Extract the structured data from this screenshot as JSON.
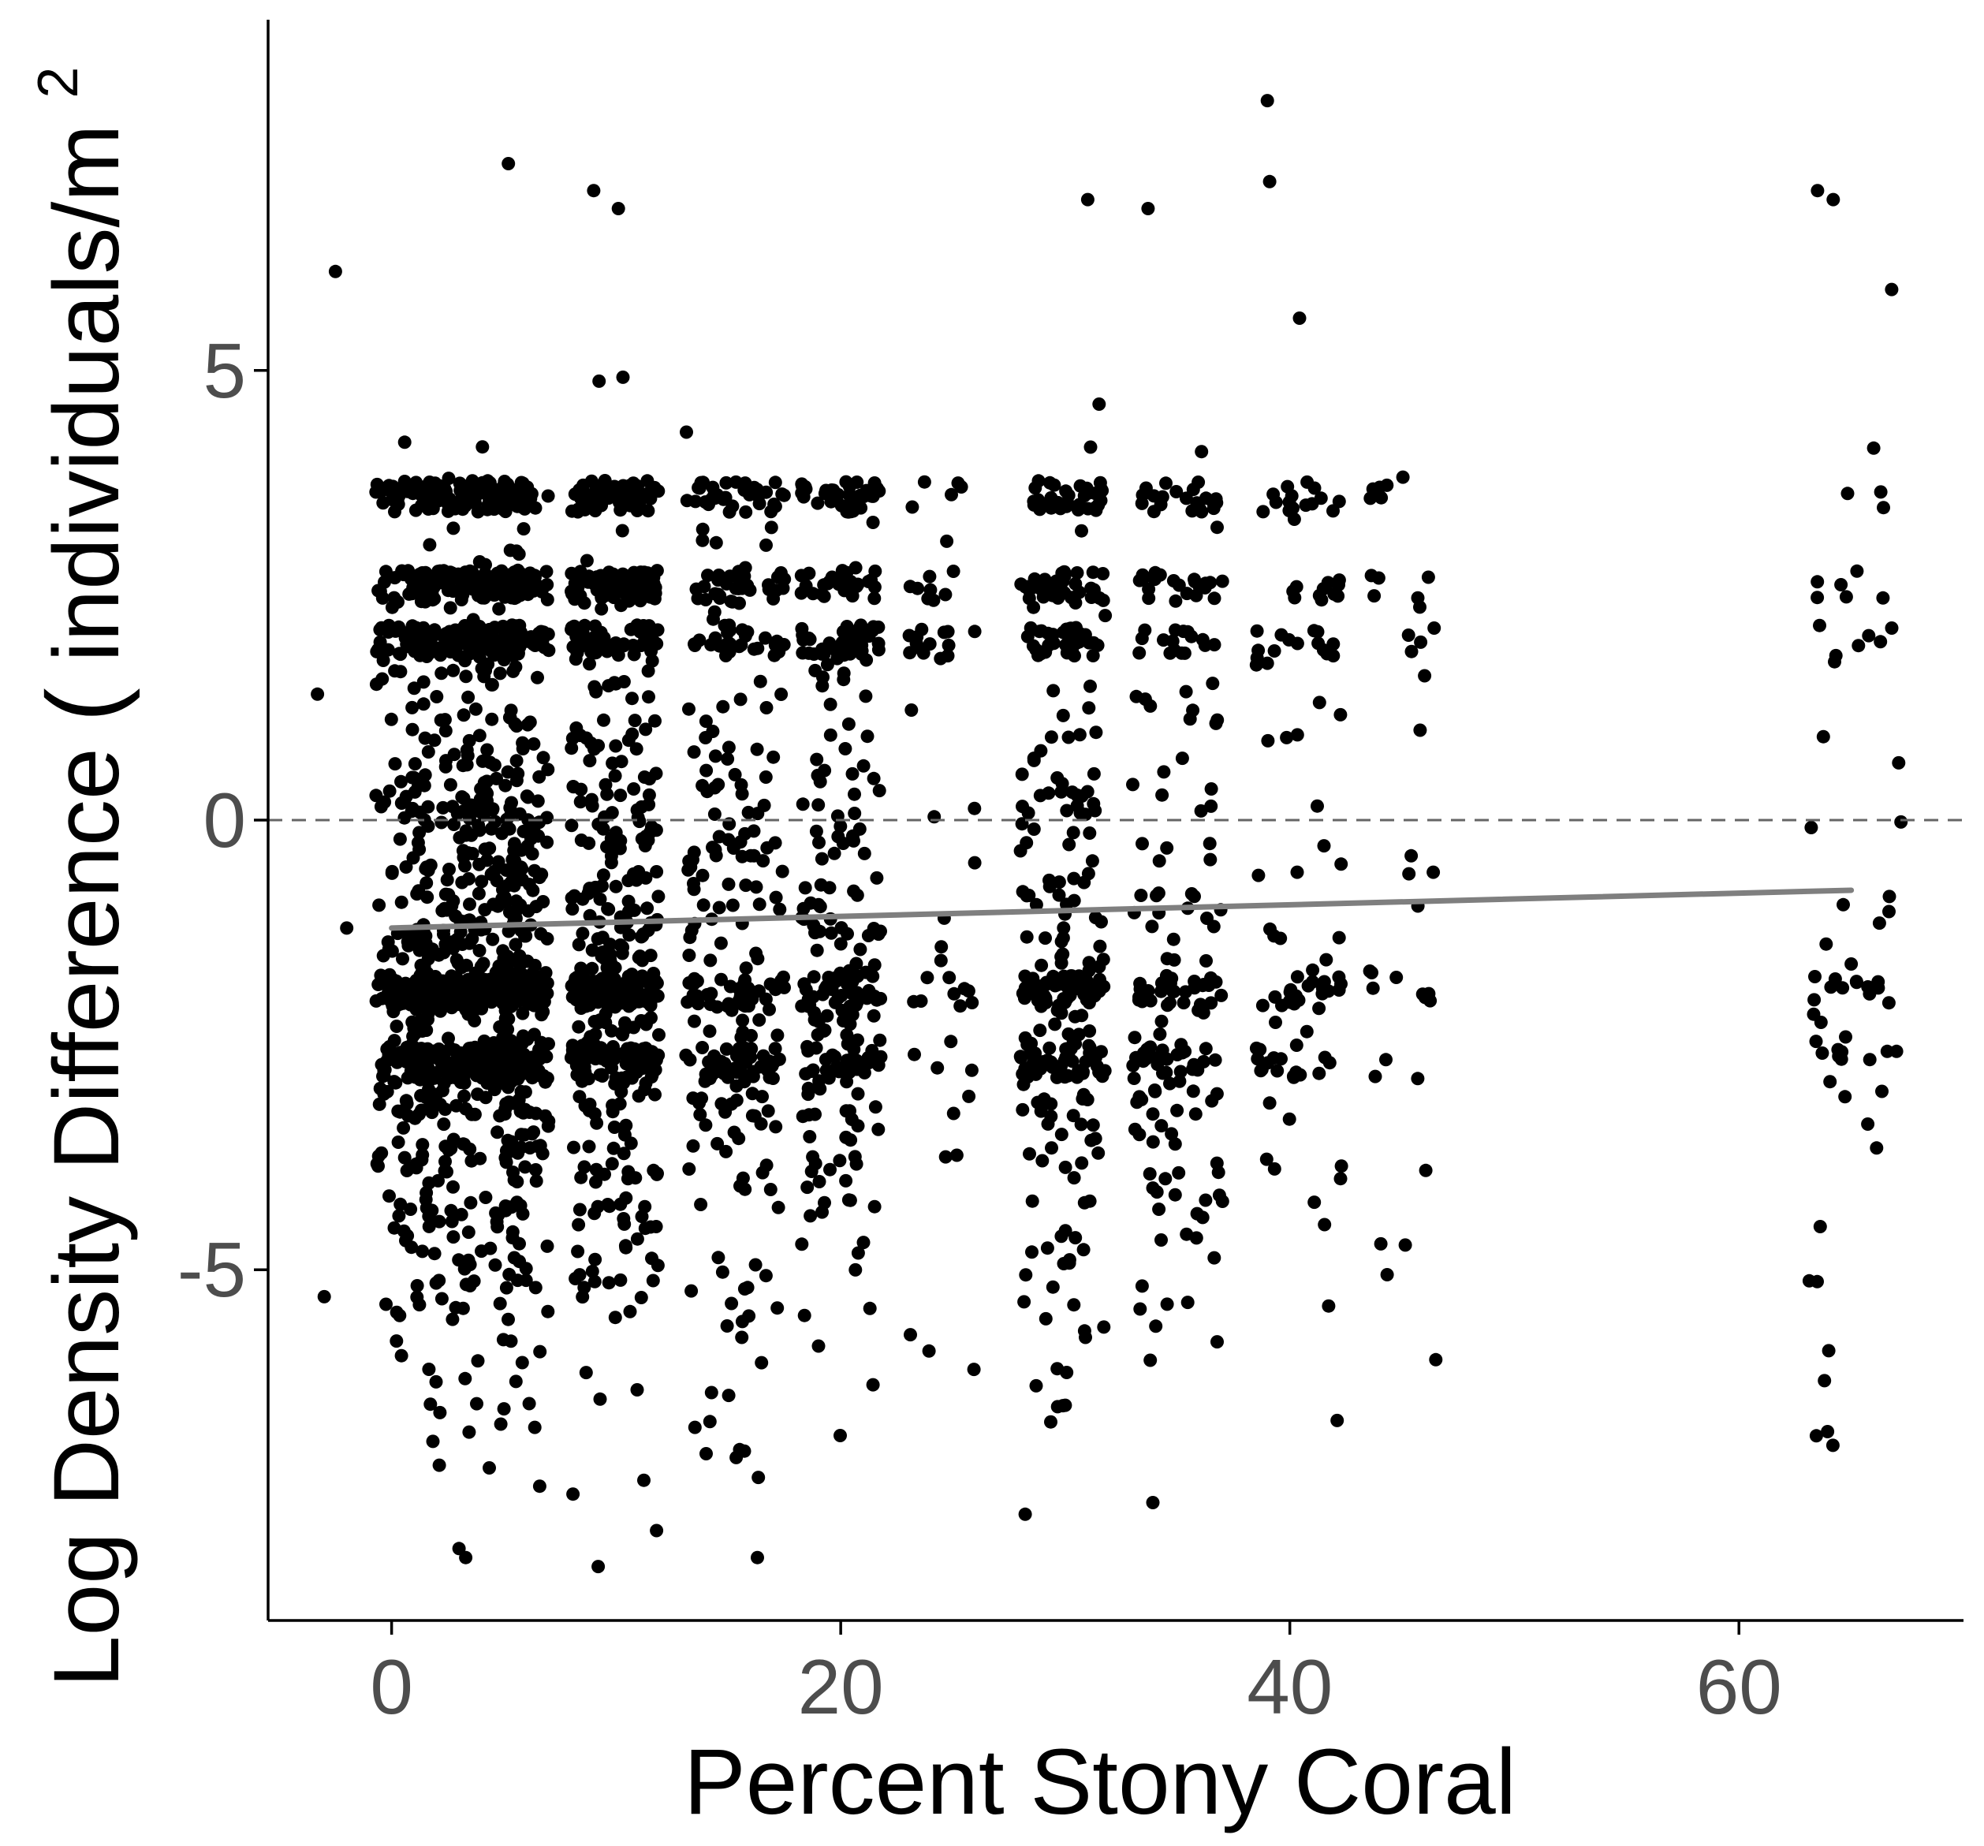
{
  "chart_data": {
    "type": "scatter",
    "xlabel": "Percent Stony Coral",
    "ylabel": "Log Density Difference (individuals/m²)",
    "ylabel_parts": {
      "main": "Log Density Difference ",
      "open": "(",
      "unit": "individuals/m",
      "sup": "2"
    },
    "xlim": [
      -5.5,
      70
    ],
    "ylim": [
      -8.9,
      8.9
    ],
    "x_ticks": [
      0,
      20,
      40,
      60
    ],
    "x_tick_labels": [
      "0",
      "20",
      "40",
      "60"
    ],
    "y_ticks": [
      -5,
      0,
      5
    ],
    "y_tick_labels": [
      "-5",
      "0",
      "5"
    ],
    "grid": false,
    "legend": "none",
    "reference_line": {
      "y": 0,
      "style": "dashed",
      "color": "#666666"
    },
    "trend_line": {
      "x": [
        0,
        65
      ],
      "y": [
        -1.2,
        -0.78
      ],
      "color": "#7f7f7f"
    },
    "point_color": "#000000",
    "point_clusters": [
      {
        "x": 0.5,
        "spread": 1.2,
        "n": 260,
        "weight": "dense"
      },
      {
        "x": 2.2,
        "spread": 1.3,
        "n": 420,
        "weight": "dense"
      },
      {
        "x": 4.5,
        "spread": 1.4,
        "n": 520,
        "weight": "dense"
      },
      {
        "x": 6.0,
        "spread": 1.0,
        "n": 300,
        "weight": "dense"
      },
      {
        "x": 9.0,
        "spread": 1.0,
        "n": 330,
        "weight": "dense"
      },
      {
        "x": 11.0,
        "spread": 0.9,
        "n": 300,
        "weight": "dense"
      },
      {
        "x": 14.5,
        "spread": 1.4,
        "n": 210,
        "weight": "mid"
      },
      {
        "x": 16.5,
        "spread": 1.0,
        "n": 120,
        "weight": "mid"
      },
      {
        "x": 19.5,
        "spread": 1.3,
        "n": 200,
        "weight": "mid"
      },
      {
        "x": 21.0,
        "spread": 0.8,
        "n": 110,
        "weight": "mid"
      },
      {
        "x": 24.5,
        "spread": 1.5,
        "n": 55,
        "weight": "sparse"
      },
      {
        "x": 29.0,
        "spread": 1.0,
        "n": 180,
        "weight": "mid"
      },
      {
        "x": 30.8,
        "spread": 1.0,
        "n": 190,
        "weight": "mid"
      },
      {
        "x": 34.0,
        "spread": 1.0,
        "n": 110,
        "weight": "mid"
      },
      {
        "x": 36.0,
        "spread": 1.0,
        "n": 95,
        "weight": "mid"
      },
      {
        "x": 39.5,
        "spread": 1.0,
        "n": 60,
        "weight": "sparse"
      },
      {
        "x": 41.5,
        "spread": 0.8,
        "n": 50,
        "weight": "sparse"
      },
      {
        "x": 45.0,
        "spread": 1.5,
        "n": 35,
        "weight": "sparse"
      },
      {
        "x": 64.3,
        "spread": 1.2,
        "n": 40,
        "weight": "sparse"
      },
      {
        "x": 66.5,
        "spread": 0.8,
        "n": 22,
        "weight": "sparse"
      }
    ],
    "y_bands": [
      {
        "y": 3.6,
        "frac": 0.1
      },
      {
        "y": 2.6,
        "frac": 0.1
      },
      {
        "y": 2.0,
        "frac": 0.1
      },
      {
        "y": -1.9,
        "frac": 0.12
      },
      {
        "y": -2.7,
        "frac": 0.1
      }
    ],
    "notable_points": [
      {
        "x": 39.0,
        "y": 8.0
      },
      {
        "x": 39.1,
        "y": 7.1
      },
      {
        "x": 31.0,
        "y": 6.9
      },
      {
        "x": 63.5,
        "y": 7.0
      },
      {
        "x": 64.2,
        "y": 6.9
      },
      {
        "x": 66.8,
        "y": 5.9
      },
      {
        "x": 5.2,
        "y": 7.3
      },
      {
        "x": 9.0,
        "y": 7.0
      },
      {
        "x": 10.1,
        "y": 6.8
      },
      {
        "x": 9.2,
        "y": -8.3
      },
      {
        "x": 3.0,
        "y": -8.1
      },
      {
        "x": 11.8,
        "y": -7.9
      },
      {
        "x": 64.0,
        "y": -5.9
      },
      {
        "x": 46.5,
        "y": -6.0
      },
      {
        "x": 15.5,
        "y": -7.0
      },
      {
        "x": 65.0,
        "y": -1.6
      },
      {
        "x": 66.7,
        "y": -0.85
      },
      {
        "x": 44.0,
        "y": 3.7
      },
      {
        "x": 45.8,
        "y": 1.0
      },
      {
        "x": -2.5,
        "y": 6.1
      },
      {
        "x": -3.0,
        "y": -5.3
      },
      {
        "x": -3.3,
        "y": 1.4
      },
      {
        "x": -2.0,
        "y": -1.2
      }
    ]
  }
}
